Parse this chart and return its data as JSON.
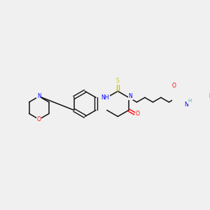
{
  "bg_color": "#f0f0f0",
  "atom_colors": {
    "C": "#000000",
    "N": "#0000ff",
    "O": "#ff0000",
    "S": "#cccc00",
    "H": "#4daaaa"
  },
  "bond_color": "#000000",
  "figsize": [
    3.0,
    3.0
  ],
  "dpi": 100
}
